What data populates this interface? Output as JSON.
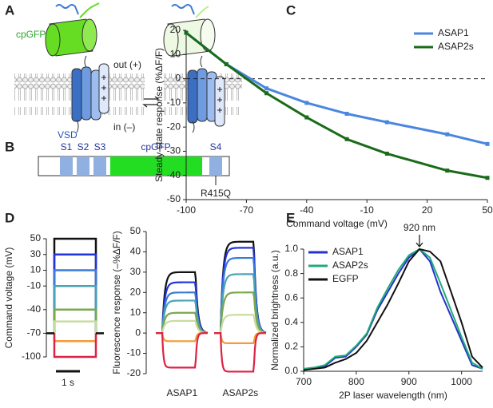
{
  "panel_labels": [
    "A",
    "B",
    "C",
    "D",
    "E"
  ],
  "diagram": {
    "a": {
      "cpgfp": "cpGFP",
      "out": "out (+)",
      "in": "in (–)",
      "vsd": "VSD"
    },
    "b": {
      "segments": [
        "S1",
        "S2",
        "S3"
      ],
      "cpgfp": "cpGFP",
      "s4": "S4",
      "mutation": "R415Q"
    }
  },
  "chart_data": [
    {
      "type": "line",
      "xlabel": "Command voltage (mV)",
      "ylabel": "Steady-state response (%ΔF/F)",
      "x": [
        -100,
        -80,
        -60,
        -40,
        -20,
        0,
        30,
        50
      ],
      "series": [
        {
          "name": "ASAP1",
          "color": "#4a86e0",
          "values": [
            19,
            6,
            -4,
            -10,
            -14.5,
            -18,
            -23,
            -27
          ]
        },
        {
          "name": "ASAP2s",
          "color": "#1a6b1a",
          "values": [
            19,
            6,
            -6,
            -16,
            -25,
            -31,
            -38,
            -41
          ]
        }
      ],
      "xlim": [
        -100,
        50
      ],
      "xticks": [
        -100,
        -70,
        -40,
        -10,
        20,
        50
      ],
      "ylim": [
        -50,
        20
      ],
      "yticks": [
        -50,
        -40,
        -30,
        -20,
        -10,
        0,
        10,
        20
      ],
      "hlines": [
        0
      ],
      "legend": "upper right",
      "markers": true
    },
    {
      "type": "step",
      "ylabel": "Command voltage (mV)",
      "ylim": [
        -100,
        50
      ],
      "yticks": [
        50,
        30,
        10,
        -10,
        -40,
        -70,
        -100
      ],
      "baseline": -70,
      "values": [
        50,
        30,
        10,
        -10,
        -40,
        -55,
        -80,
        -100
      ],
      "colors": [
        "#111111",
        "#2233dd",
        "#3a7bd5",
        "#4aa3b5",
        "#7aa84a",
        "#c9dca0",
        "#f39a3a",
        "#dd2244"
      ],
      "scalebar": "1 s"
    },
    {
      "type": "trace",
      "ylabel": "Fluorescence response (–%ΔF/F)",
      "categories": [
        "ASAP1",
        "ASAP2s"
      ],
      "ylim": [
        -20,
        50
      ],
      "yticks": [
        -20,
        -10,
        0,
        10,
        20,
        30,
        40,
        50
      ],
      "series": [
        {
          "color": "#111111",
          "values": [
            30,
            45
          ]
        },
        {
          "color": "#2233dd",
          "values": [
            25,
            42
          ]
        },
        {
          "color": "#3a7bd5",
          "values": [
            20,
            37
          ]
        },
        {
          "color": "#4aa3b5",
          "values": [
            16,
            29
          ]
        },
        {
          "color": "#7aa84a",
          "values": [
            10,
            20
          ]
        },
        {
          "color": "#c9dca0",
          "values": [
            6,
            9
          ]
        },
        {
          "color": "#f39a3a",
          "values": [
            -4,
            -5
          ]
        },
        {
          "color": "#dd2244",
          "values": [
            -17,
            -19
          ]
        }
      ]
    },
    {
      "type": "line",
      "xlabel": "2P laser wavelength (nm)",
      "ylabel": "Normalized brightness (a.u.)",
      "x": [
        700,
        720,
        740,
        760,
        780,
        800,
        820,
        840,
        860,
        880,
        900,
        920,
        940,
        960,
        980,
        1000,
        1020,
        1040
      ],
      "series": [
        {
          "name": "ASAP1",
          "color": "#2233cc",
          "values": [
            0.02,
            0.03,
            0.04,
            0.11,
            0.12,
            0.2,
            0.3,
            0.5,
            0.65,
            0.8,
            0.93,
            1,
            0.9,
            0.65,
            0.45,
            0.25,
            0.05,
            0.02
          ]
        },
        {
          "name": "ASAP2s",
          "color": "#22aa77",
          "values": [
            0.02,
            0.03,
            0.05,
            0.12,
            0.13,
            0.21,
            0.31,
            0.52,
            0.68,
            0.83,
            0.95,
            1,
            0.93,
            0.72,
            0.5,
            0.28,
            0.07,
            0.02
          ]
        },
        {
          "name": "EGFP",
          "color": "#111111",
          "values": [
            0.01,
            0.02,
            0.03,
            0.07,
            0.1,
            0.15,
            0.25,
            0.4,
            0.55,
            0.72,
            0.9,
            1,
            0.98,
            0.9,
            0.65,
            0.4,
            0.12,
            0.03
          ]
        }
      ],
      "xlim": [
        700,
        1040
      ],
      "xticks": [
        700,
        800,
        900,
        1000
      ],
      "ylim": [
        0,
        1
      ],
      "yticks": [
        {
          "value": 0,
          "label": "0.0"
        },
        0.2,
        0.4,
        0.6,
        0.8,
        {
          "value": 1,
          "label": "1.0"
        }
      ],
      "annotation": {
        "text": "920 nm",
        "x": 920,
        "y": 1
      },
      "legend": "upper left"
    }
  ]
}
